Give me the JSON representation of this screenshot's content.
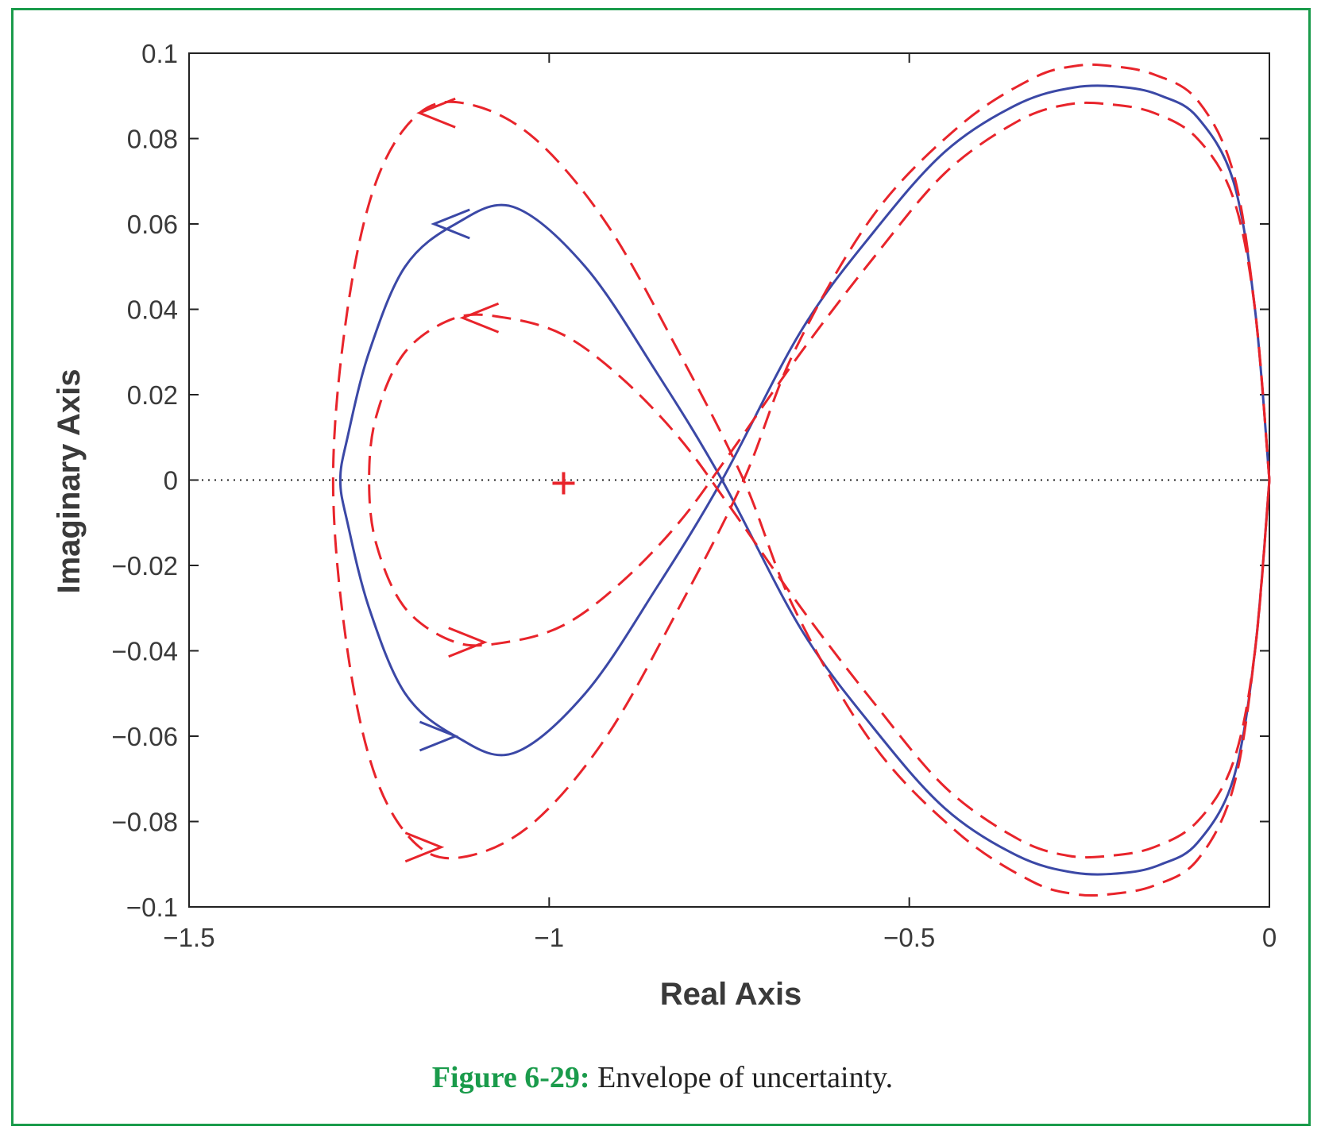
{
  "chart_data": {
    "type": "line",
    "xlabel": "Real Axis",
    "ylabel": "Imaginary Axis",
    "xlim": [
      -1.5,
      0
    ],
    "ylim": [
      -0.1,
      0.1
    ],
    "xticks": [
      -1.5,
      -1,
      -0.5,
      0
    ],
    "xtick_labels": [
      "−1.5",
      "−1",
      "−0.5",
      "0"
    ],
    "yticks": [
      -0.1,
      -0.08,
      -0.06,
      -0.04,
      -0.02,
      0,
      0.02,
      0.04,
      0.06,
      0.08,
      0.1
    ],
    "ytick_labels": [
      "−0.1",
      "−0.08",
      "−0.06",
      "−0.04",
      "−0.02",
      "0",
      "0.02",
      "0.04",
      "0.06",
      "0.08",
      "0.1"
    ],
    "grid": false,
    "reference_line": {
      "y": 0,
      "style": "dotted"
    },
    "marker": {
      "x": -0.98,
      "y": 0,
      "symbol": "+",
      "color": "#e8242b"
    },
    "series": [
      {
        "style": "solid",
        "color": "#3b48a6",
        "x": [
          0,
          -0.02,
          -0.05,
          -0.1,
          -0.15,
          -0.2,
          -0.27,
          -0.35,
          -0.45,
          -0.55,
          -0.65,
          -0.76,
          -0.85,
          -0.95,
          -1.05,
          -1.13,
          -1.2,
          -1.25,
          -1.28,
          -1.29,
          -1.28,
          -1.25,
          -1.2,
          -1.13,
          -1.05,
          -0.95,
          -0.85,
          -0.76,
          -0.65,
          -0.55,
          -0.45,
          -0.35,
          -0.27,
          -0.2,
          -0.15,
          -0.1,
          -0.05,
          -0.02,
          0
        ],
        "y": [
          0,
          0.04,
          0.07,
          0.085,
          0.09,
          0.092,
          0.092,
          0.088,
          0.077,
          0.058,
          0.035,
          0,
          -0.025,
          -0.05,
          -0.064,
          -0.06,
          -0.05,
          -0.03,
          -0.01,
          0,
          0.01,
          0.03,
          0.05,
          0.06,
          0.064,
          0.05,
          0.025,
          0,
          -0.035,
          -0.058,
          -0.077,
          -0.088,
          -0.092,
          -0.092,
          -0.09,
          -0.085,
          -0.07,
          -0.04,
          0
        ]
      },
      {
        "style": "dashed",
        "color": "#e8242b",
        "x": [
          0,
          -0.02,
          -0.05,
          -0.1,
          -0.16,
          -0.22,
          -0.27,
          -0.33,
          -0.43,
          -0.55,
          -0.66,
          -0.73,
          -0.82,
          -0.92,
          -1.02,
          -1.11,
          -1.18,
          -1.24,
          -1.28,
          -1.3,
          -1.28,
          -1.24,
          -1.18,
          -1.11,
          -1.02,
          -0.92,
          -0.82,
          -0.73,
          -0.66,
          -0.55,
          -0.43,
          -0.33,
          -0.27,
          -0.22,
          -0.16,
          -0.1,
          -0.05,
          -0.02,
          0
        ],
        "y": [
          0,
          0.04,
          0.072,
          0.089,
          0.095,
          0.097,
          0.097,
          0.094,
          0.083,
          0.062,
          0.03,
          0,
          -0.03,
          -0.06,
          -0.08,
          -0.088,
          -0.086,
          -0.07,
          -0.04,
          0,
          0.04,
          0.07,
          0.086,
          0.088,
          0.08,
          0.06,
          0.03,
          0,
          -0.03,
          -0.062,
          -0.083,
          -0.094,
          -0.097,
          -0.097,
          -0.095,
          -0.089,
          -0.072,
          -0.04,
          0
        ]
      },
      {
        "style": "dashed",
        "color": "#e8242b",
        "x": [
          0,
          -0.02,
          -0.05,
          -0.1,
          -0.16,
          -0.22,
          -0.28,
          -0.35,
          -0.45,
          -0.55,
          -0.65,
          -0.75,
          -0.82,
          -0.9,
          -0.98,
          -1.06,
          -1.13,
          -1.2,
          -1.24,
          -1.25,
          -1.24,
          -1.2,
          -1.13,
          -1.06,
          -0.98,
          -0.9,
          -0.82,
          -0.75,
          -0.65,
          -0.55,
          -0.45,
          -0.35,
          -0.28,
          -0.22,
          -0.16,
          -0.1,
          -0.05,
          -0.02,
          0
        ],
        "y": [
          0,
          0.04,
          0.066,
          0.08,
          0.086,
          0.088,
          0.088,
          0.084,
          0.072,
          0.052,
          0.03,
          0.006,
          -0.01,
          -0.024,
          -0.034,
          -0.038,
          -0.038,
          -0.03,
          -0.015,
          0,
          0.015,
          0.03,
          0.038,
          0.038,
          0.034,
          0.024,
          0.01,
          -0.006,
          -0.03,
          -0.052,
          -0.072,
          -0.084,
          -0.088,
          -0.088,
          -0.086,
          -0.08,
          -0.066,
          -0.04,
          0
        ]
      }
    ],
    "arrowheads": [
      {
        "x": -1.16,
        "y": 0.06,
        "dir": "left",
        "color": "#3b48a6"
      },
      {
        "x": -1.13,
        "y": -0.06,
        "dir": "right",
        "color": "#3b48a6"
      },
      {
        "x": -1.18,
        "y": 0.086,
        "dir": "left",
        "color": "#e8242b"
      },
      {
        "x": -1.15,
        "y": -0.086,
        "dir": "right",
        "color": "#e8242b"
      },
      {
        "x": -1.12,
        "y": 0.038,
        "dir": "left",
        "color": "#e8242b"
      },
      {
        "x": -1.09,
        "y": -0.038,
        "dir": "right",
        "color": "#e8242b"
      }
    ]
  },
  "caption": {
    "label": "Figure 6-29:",
    "text": " Envelope of uncertainty."
  }
}
